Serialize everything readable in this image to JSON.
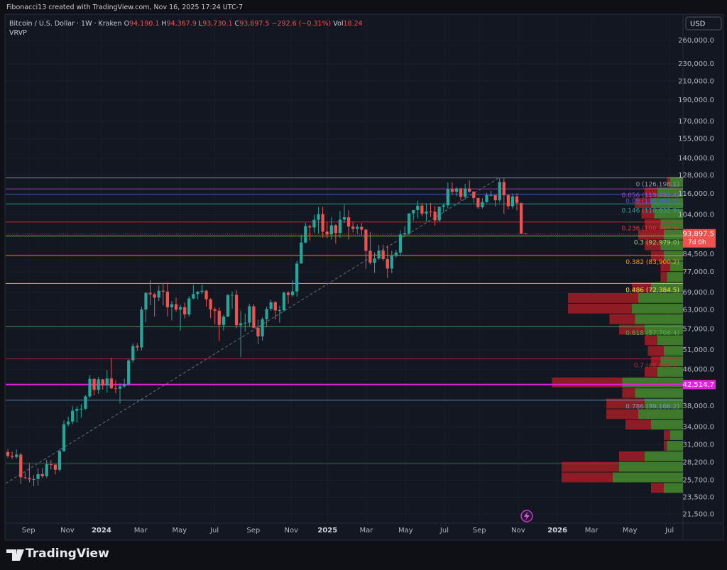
{
  "header": {
    "credit": "Fibonacci13 created with TradingView.com, Nov 16, 2025 17:24 UTC-7"
  },
  "footer": {
    "brand": "TradingView"
  },
  "chart_data": {
    "type": "candlestick",
    "symbol": "Bitcoin / U.S. Dollar · 1W · Kraken",
    "ohlc_prefixes": [
      "O",
      "H",
      "L",
      "C"
    ],
    "last_value_labels": [
      "94,190.1",
      "94,367.9",
      "93,730.1",
      "93,897.5"
    ],
    "change_label": "−292.6 (−0.31%)",
    "volume_prefix": "Vol",
    "volume_label": "18.24",
    "indicator": "VRVP",
    "currency": "USD",
    "countdown": "7d 0h",
    "up_color": "#26a69a",
    "down_color": "#ef5350",
    "log_scale": true,
    "grid": true,
    "ylim": [
      20500,
      296500
    ],
    "xlim": [
      -0.5,
      156.5
    ],
    "yticks": [
      {
        "value": 260000,
        "label": "260,000.0"
      },
      {
        "value": 230000,
        "label": "230,000.0"
      },
      {
        "value": 210000,
        "label": "210,000.0"
      },
      {
        "value": 190000,
        "label": "190,000.0"
      },
      {
        "value": 170000,
        "label": "170,000.0"
      },
      {
        "value": 155000,
        "label": "155,000.0"
      },
      {
        "value": 140000,
        "label": "140,000.0"
      },
      {
        "value": 128000,
        "label": "128,000.0"
      },
      {
        "value": 116000,
        "label": "116,000.0"
      },
      {
        "value": 104000,
        "label": "104,000.0"
      },
      {
        "value": 84500,
        "label": "84,500.0"
      },
      {
        "value": 77000,
        "label": "77,000.0"
      },
      {
        "value": 69000,
        "label": "69,000.0"
      },
      {
        "value": 63000,
        "label": "63,000.0"
      },
      {
        "value": 57000,
        "label": "57,000.0"
      },
      {
        "value": 51000,
        "label": "51,000.0"
      },
      {
        "value": 46000,
        "label": "46,000.0"
      },
      {
        "value": 38000,
        "label": "38,000.0"
      },
      {
        "value": 34000,
        "label": "34,000.0"
      },
      {
        "value": 31000,
        "label": "31,000.0"
      },
      {
        "value": 28200,
        "label": "28,200.0"
      },
      {
        "value": 25700,
        "label": "25,700.0"
      },
      {
        "value": 23500,
        "label": "23,500.0"
      },
      {
        "value": 21500,
        "label": "21,500.0"
      }
    ],
    "xticks": [
      {
        "value": 4.8,
        "label": "Sep"
      },
      {
        "value": 13.8,
        "label": "Nov"
      },
      {
        "value": 21.7,
        "label": "2024"
      },
      {
        "value": 30.8,
        "label": "Mar"
      },
      {
        "value": 39.8,
        "label": "May"
      },
      {
        "value": 47.9,
        "label": "Jul"
      },
      {
        "value": 56.9,
        "label": "Sep"
      },
      {
        "value": 65.7,
        "label": "Nov"
      },
      {
        "value": 74.1,
        "label": "2025"
      },
      {
        "value": 83.1,
        "label": "Mar"
      },
      {
        "value": 92.2,
        "label": "May"
      },
      {
        "value": 101.2,
        "label": "Jul"
      },
      {
        "value": 109.3,
        "label": "Sep"
      },
      {
        "value": 118.3,
        "label": "Nov"
      },
      {
        "value": 127.4,
        "label": "2026"
      },
      {
        "value": 135.3,
        "label": "Mar"
      },
      {
        "value": 144.2,
        "label": "May"
      },
      {
        "value": 153.4,
        "label": "Jul"
      }
    ],
    "candles": [
      [
        29800,
        30300,
        28900,
        29200
      ],
      [
        29200,
        29900,
        28700,
        29050
      ],
      [
        29050,
        30200,
        28800,
        29400
      ],
      [
        29400,
        29700,
        25200,
        26100
      ],
      [
        26100,
        26800,
        25800,
        26000
      ],
      [
        26000,
        28100,
        25400,
        25800
      ],
      [
        25800,
        26400,
        24900,
        25850
      ],
      [
        25850,
        27400,
        25000,
        26550
      ],
      [
        26550,
        27400,
        26000,
        26250
      ],
      [
        26250,
        28600,
        26000,
        27950
      ],
      [
        27950,
        28600,
        27200,
        27900
      ],
      [
        27900,
        28000,
        26500,
        27150
      ],
      [
        27150,
        30300,
        26900,
        29950
      ],
      [
        29950,
        35200,
        29800,
        34500
      ],
      [
        34500,
        35900,
        34100,
        35000
      ],
      [
        35000,
        38000,
        34500,
        37050
      ],
      [
        37050,
        37900,
        34800,
        37400
      ],
      [
        37400,
        38400,
        35700,
        37450
      ],
      [
        37450,
        40200,
        37200,
        39950
      ],
      [
        39950,
        44700,
        39600,
        43800
      ],
      [
        43800,
        44000,
        40200,
        41350
      ],
      [
        41350,
        44300,
        40500,
        43700
      ],
      [
        43700,
        43800,
        41400,
        42300
      ],
      [
        42300,
        45900,
        40700,
        43900
      ],
      [
        43900,
        49000,
        41500,
        41700
      ],
      [
        41700,
        43500,
        40600,
        41600
      ],
      [
        41600,
        42800,
        38500,
        42100
      ],
      [
        42100,
        43900,
        41800,
        42600
      ],
      [
        42600,
        48600,
        42300,
        48300
      ],
      [
        48300,
        52800,
        47700,
        52100
      ],
      [
        52100,
        52900,
        50700,
        51700
      ],
      [
        51700,
        64000,
        50900,
        63100
      ],
      [
        63100,
        69200,
        59000,
        68900
      ],
      [
        68900,
        73800,
        64600,
        68400
      ],
      [
        68400,
        68900,
        60800,
        67200
      ],
      [
        67200,
        71700,
        66000,
        69650
      ],
      [
        69650,
        72700,
        64500,
        69350
      ],
      [
        69350,
        72800,
        60800,
        63900
      ],
      [
        63900,
        66000,
        59600,
        64900
      ],
      [
        64900,
        67200,
        62400,
        63100
      ],
      [
        63100,
        64700,
        56500,
        63900
      ],
      [
        63900,
        65500,
        60200,
        61500
      ],
      [
        61500,
        67700,
        60800,
        66900
      ],
      [
        66900,
        71900,
        66600,
        68500
      ],
      [
        68500,
        69600,
        66600,
        69300
      ],
      [
        69300,
        71900,
        68500,
        69650
      ],
      [
        69650,
        70000,
        64100,
        66600
      ],
      [
        66600,
        67000,
        60300,
        63200
      ],
      [
        63200,
        63800,
        58400,
        62700
      ],
      [
        62700,
        63800,
        53500,
        58200
      ],
      [
        58200,
        61400,
        56500,
        60800
      ],
      [
        60800,
        68400,
        60700,
        68100
      ],
      [
        68100,
        69400,
        63400,
        68200
      ],
      [
        68200,
        70000,
        57200,
        58100
      ],
      [
        58100,
        62700,
        49100,
        58700
      ],
      [
        58700,
        61800,
        56200,
        58900
      ],
      [
        58900,
        65000,
        57800,
        64200
      ],
      [
        64200,
        64900,
        57200,
        57300
      ],
      [
        57300,
        59800,
        52600,
        54800
      ],
      [
        54800,
        60600,
        53600,
        60000
      ],
      [
        60000,
        64100,
        57500,
        63300
      ],
      [
        63300,
        66500,
        62700,
        65600
      ],
      [
        65600,
        66000,
        59900,
        62800
      ],
      [
        62800,
        64400,
        58900,
        62900
      ],
      [
        62900,
        69400,
        62400,
        69000
      ],
      [
        69000,
        69500,
        65100,
        68100
      ],
      [
        68100,
        73600,
        67500,
        69400
      ],
      [
        69400,
        81500,
        67500,
        80400
      ],
      [
        80400,
        93500,
        80300,
        89800
      ],
      [
        89800,
        99600,
        89400,
        97900
      ],
      [
        97900,
        98700,
        90800,
        97200
      ],
      [
        97200,
        104000,
        94600,
        101200
      ],
      [
        101200,
        108300,
        94200,
        104300
      ],
      [
        104300,
        108400,
        92200,
        95100
      ],
      [
        95100,
        99900,
        91800,
        93700
      ],
      [
        93700,
        102700,
        91200,
        98300
      ],
      [
        98300,
        98900,
        89300,
        94500
      ],
      [
        94500,
        106000,
        92000,
        101300
      ],
      [
        101300,
        109600,
        99500,
        102600
      ],
      [
        102600,
        106400,
        91200,
        97700
      ],
      [
        97700,
        100100,
        94700,
        96500
      ],
      [
        96500,
        98800,
        94100,
        97500
      ],
      [
        97500,
        99500,
        93400,
        96100
      ],
      [
        96100,
        96500,
        78200,
        86000
      ],
      [
        86000,
        95000,
        80000,
        80700
      ],
      [
        80700,
        85300,
        76600,
        82600
      ],
      [
        82600,
        88700,
        81900,
        86100
      ],
      [
        86100,
        88800,
        81600,
        82300
      ],
      [
        82300,
        88500,
        74500,
        78300
      ],
      [
        78300,
        86100,
        76400,
        83700
      ],
      [
        83700,
        86400,
        83000,
        85200
      ],
      [
        85200,
        95700,
        83900,
        93700
      ],
      [
        93700,
        97900,
        92900,
        94300
      ],
      [
        94300,
        104800,
        93400,
        104700
      ],
      [
        104700,
        106600,
        100800,
        106500
      ],
      [
        106500,
        111900,
        102000,
        109000
      ],
      [
        109000,
        110700,
        103100,
        104600
      ],
      [
        104600,
        110400,
        100400,
        105700
      ],
      [
        105700,
        110600,
        102700,
        105600
      ],
      [
        105600,
        108900,
        98200,
        100900
      ],
      [
        100900,
        108500,
        100400,
        108400
      ],
      [
        108400,
        110500,
        105200,
        109200
      ],
      [
        109200,
        123200,
        107500,
        119100
      ],
      [
        119100,
        123200,
        115700,
        117300
      ],
      [
        117300,
        120200,
        114700,
        119400
      ],
      [
        119400,
        119800,
        111900,
        114200
      ],
      [
        114200,
        122300,
        112600,
        119300
      ],
      [
        119300,
        124500,
        116800,
        117400
      ],
      [
        117400,
        117600,
        110700,
        113500
      ],
      [
        113500,
        113600,
        107300,
        108200
      ],
      [
        108200,
        113400,
        107300,
        111100
      ],
      [
        111100,
        116700,
        110800,
        115300
      ],
      [
        115300,
        117900,
        114500,
        115300
      ],
      [
        115300,
        115400,
        108600,
        112200
      ],
      [
        112200,
        126200,
        111000,
        123500
      ],
      [
        123500,
        126198.1,
        104500,
        115200
      ],
      [
        115200,
        116000,
        107000,
        108700
      ],
      [
        108700,
        116200,
        107300,
        114500
      ],
      [
        114500,
        116400,
        106300,
        110600
      ],
      [
        110600,
        110700,
        93800,
        94190.1
      ],
      [
        94190.1,
        94367.9,
        93730.1,
        93897.5
      ]
    ],
    "fib_levels": [
      {
        "value": 126198.1,
        "label": "0 (126,198.1)",
        "color": "#8f9a9a"
      },
      {
        "value": 119092.4,
        "label": "0.056 (119,092.4)",
        "color": "#b548c6"
      },
      {
        "value": 115669.6,
        "label": "0.09 (115,669.6)",
        "color": "#4a63d8"
      },
      {
        "value": 110031.9,
        "label": "0.146 (110,031.9)",
        "color": "#26a69a"
      },
      {
        "value": 100065.9,
        "label": "0.236 (100,065.9)",
        "color": "#e0303d"
      },
      {
        "value": 92979.0,
        "label": "0.3 (92,979.0)",
        "color": "#9ccc65"
      },
      {
        "value": 83900.2,
        "label": "0.382 (83,900.2)",
        "color": "#ff9800"
      },
      {
        "value": 72384.5,
        "label": "0.486 (72,384.5)",
        "color": "#f5e53b"
      },
      {
        "value": 57708.4,
        "label": "0.618 (57,708.4)",
        "color": "#4caf50"
      },
      {
        "value": 48658.1,
        "label": "0.7 (48,658.1)",
        "color": "#c62832"
      },
      {
        "value": 39166.2,
        "label": "0.786 (39,166.2)",
        "color": "#6f9cc4"
      },
      {
        "value": 28000,
        "label": null,
        "color": "#2e7d32"
      }
    ],
    "hlines": [
      {
        "value": 42514.7,
        "label": "42,514.7",
        "color": "#e91ee6"
      }
    ],
    "volume_profile": {
      "row_edges": [
        24000,
        25370,
        26820,
        28350,
        29970,
        31680,
        33490,
        35400,
        37420,
        39560,
        41820,
        44210,
        46730,
        49400,
        52220,
        55200,
        58350,
        61690,
        65210,
        68930,
        72870,
        77030,
        81430,
        86080,
        91000,
        96190,
        101690,
        107490,
        113630,
        120120,
        126980
      ],
      "up_color": "#3f7a2c",
      "down_color": "#8e1c24",
      "up": [
        30,
        110,
        100,
        60,
        25,
        20,
        50,
        70,
        60,
        75,
        95,
        40,
        35,
        30,
        40,
        60,
        75,
        80,
        70,
        50,
        25,
        20,
        30,
        35,
        30,
        35,
        45,
        50,
        40,
        20
      ],
      "down": [
        20,
        80,
        90,
        40,
        5,
        10,
        40,
        50,
        60,
        20,
        110,
        20,
        15,
        25,
        20,
        40,
        40,
        100,
        110,
        30,
        10,
        15,
        20,
        25,
        40,
        25,
        20,
        25,
        20,
        5
      ]
    }
  }
}
